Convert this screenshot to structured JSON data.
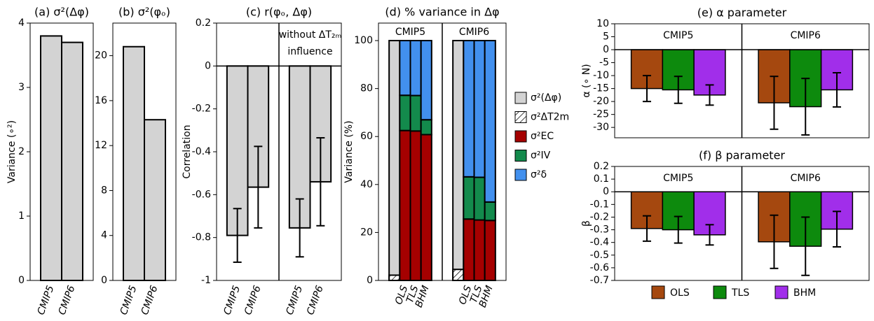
{
  "chart_data": [
    {
      "type": "bar",
      "title": "(a) σ²(Δφ)",
      "ylabel": "Variance (∘²)",
      "categories": [
        "CMIP5",
        "CMIP6"
      ],
      "values": [
        3.8,
        3.7
      ],
      "color": "#d3d3d3",
      "ylim": [
        0,
        4
      ],
      "yticks": [
        0,
        1,
        2,
        3,
        4
      ]
    },
    {
      "type": "bar",
      "title": "(b) σ²(φₒ)",
      "categories": [
        "CMIP5",
        "CMIP6"
      ],
      "values": [
        20.8,
        14.3
      ],
      "color": "#d3d3d3",
      "ylim": [
        0,
        22.9
      ],
      "yticks": [
        0,
        4,
        8,
        12,
        16,
        20
      ]
    },
    {
      "type": "bar",
      "title": "(c) r(φₒ, Δφ)",
      "ylabel": "Correlation",
      "color": "#d3d3d3",
      "ylim": [
        -1,
        0.2
      ],
      "yticks": [
        -1,
        -0.8,
        -0.6,
        -0.4,
        -0.2,
        0,
        0.2
      ],
      "groups": [
        {
          "categories": [
            "CMIP5",
            "CMIP6"
          ],
          "values": [
            -0.79,
            -0.565
          ],
          "errors": [
            0.125,
            0.19
          ]
        },
        {
          "categories": [
            "CMIP5",
            "CMIP6"
          ],
          "values": [
            -0.755,
            -0.54
          ],
          "errors": [
            0.135,
            0.205
          ],
          "annotation": [
            "without ΔT₂ₘ",
            "influence"
          ]
        }
      ]
    },
    {
      "type": "stacked_bar",
      "title": "(d) % variance in Δφ",
      "ylabel": "Variance (%)",
      "ylim": [
        0,
        107.3
      ],
      "yticks": [
        0,
        20,
        40,
        60,
        80,
        100
      ],
      "legend": "right",
      "groups": [
        "CMIP5",
        "CMIP6"
      ],
      "categories": [
        null,
        "OLS",
        "TLS",
        "BHM",
        null,
        "OLS",
        "TLS",
        "BHM"
      ],
      "series": [
        {
          "name": "σ²(Δφ)",
          "color": "#d3d3d3",
          "values": [
            100,
            null,
            null,
            null,
            100,
            null,
            null,
            null
          ]
        },
        {
          "name": "σ²ΔT2m",
          "color": "#ffffff",
          "hatch": true,
          "values": [
            2.2,
            null,
            null,
            null,
            4.6,
            null,
            null,
            null
          ]
        },
        {
          "name": "σ²EC",
          "color": "#a50000",
          "values": [
            null,
            62.5,
            62.3,
            60.8,
            null,
            25.6,
            25.2,
            25
          ]
        },
        {
          "name": "σ²IV",
          "color": "#138a4c",
          "values": [
            null,
            14.7,
            14.8,
            6.2,
            null,
            17.6,
            17.8,
            7.7
          ]
        },
        {
          "name": "σ²δ",
          "color": "#4290ee",
          "values": [
            null,
            22.8,
            22.9,
            33,
            null,
            56.8,
            57,
            67.3
          ]
        }
      ]
    },
    {
      "type": "grouped_bar",
      "title": "(e) α parameter",
      "ylabel": "α (∘ N)",
      "ylim": [
        -34,
        10
      ],
      "yticks": [
        -30,
        -25,
        -20,
        -15,
        -10,
        -5,
        0,
        5,
        10
      ],
      "groups": [
        "CMIP5",
        "CMIP6"
      ],
      "series": [
        {
          "color": "#a5480f",
          "values": [
            -15,
            -20.5
          ],
          "errors": [
            5,
            10.2
          ]
        },
        {
          "color": "#0d8a0d",
          "values": [
            -15.5,
            -22
          ],
          "errors": [
            5.2,
            10.9
          ]
        },
        {
          "color": "#a12eea",
          "values": [
            -17.5,
            -15.5
          ],
          "errors": [
            3.9,
            6.6
          ]
        }
      ]
    },
    {
      "type": "grouped_bar",
      "title": "(f) β parameter",
      "ylabel": "β",
      "ylim": [
        -0.7,
        0.2
      ],
      "yticks": [
        -0.7,
        -0.6,
        -0.5,
        -0.4,
        -0.3,
        -0.2,
        -0.1,
        0,
        0.1,
        0.2
      ],
      "legend": "below",
      "groups": [
        "CMIP5",
        "CMIP6"
      ],
      "series": [
        {
          "name": "OLS",
          "color": "#a5480f",
          "values": [
            -0.29,
            -0.395
          ],
          "errors": [
            0.1,
            0.21
          ]
        },
        {
          "name": "TLS",
          "color": "#0d8a0d",
          "values": [
            -0.3,
            -0.43
          ],
          "errors": [
            0.105,
            0.23
          ]
        },
        {
          "name": "BHM",
          "color": "#a12eea",
          "values": [
            -0.34,
            -0.295
          ],
          "errors": [
            0.08,
            0.14
          ]
        }
      ]
    }
  ]
}
